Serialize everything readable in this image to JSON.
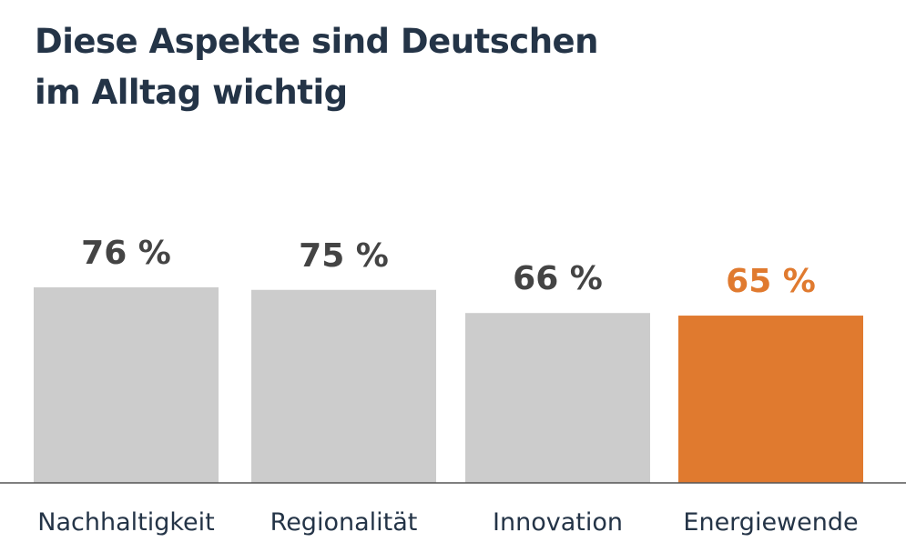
{
  "title_lines": [
    "Diese Aspekte sind Deutschen",
    "im Alltag wichtig"
  ],
  "colors": {
    "bar_default": "#cccccc",
    "bar_highlight": "#e07a2f",
    "label_default": "#444444",
    "label_highlight": "#e07a2f",
    "title": "#243447",
    "axis": "#555555"
  },
  "chart_data": {
    "type": "bar",
    "title": "Diese Aspekte sind Deutschen im Alltag wichtig",
    "categories": [
      "Nachhaltigkeit",
      "Regionalität",
      "Innovation",
      "Energiewende"
    ],
    "values": [
      76,
      75,
      66,
      65
    ],
    "value_labels": [
      "76 %",
      "75 %",
      "66 %",
      "65 %"
    ],
    "highlight_index": 3,
    "unit": "%",
    "xlabel": "",
    "ylabel": "",
    "grid": false,
    "legend": "none"
  }
}
